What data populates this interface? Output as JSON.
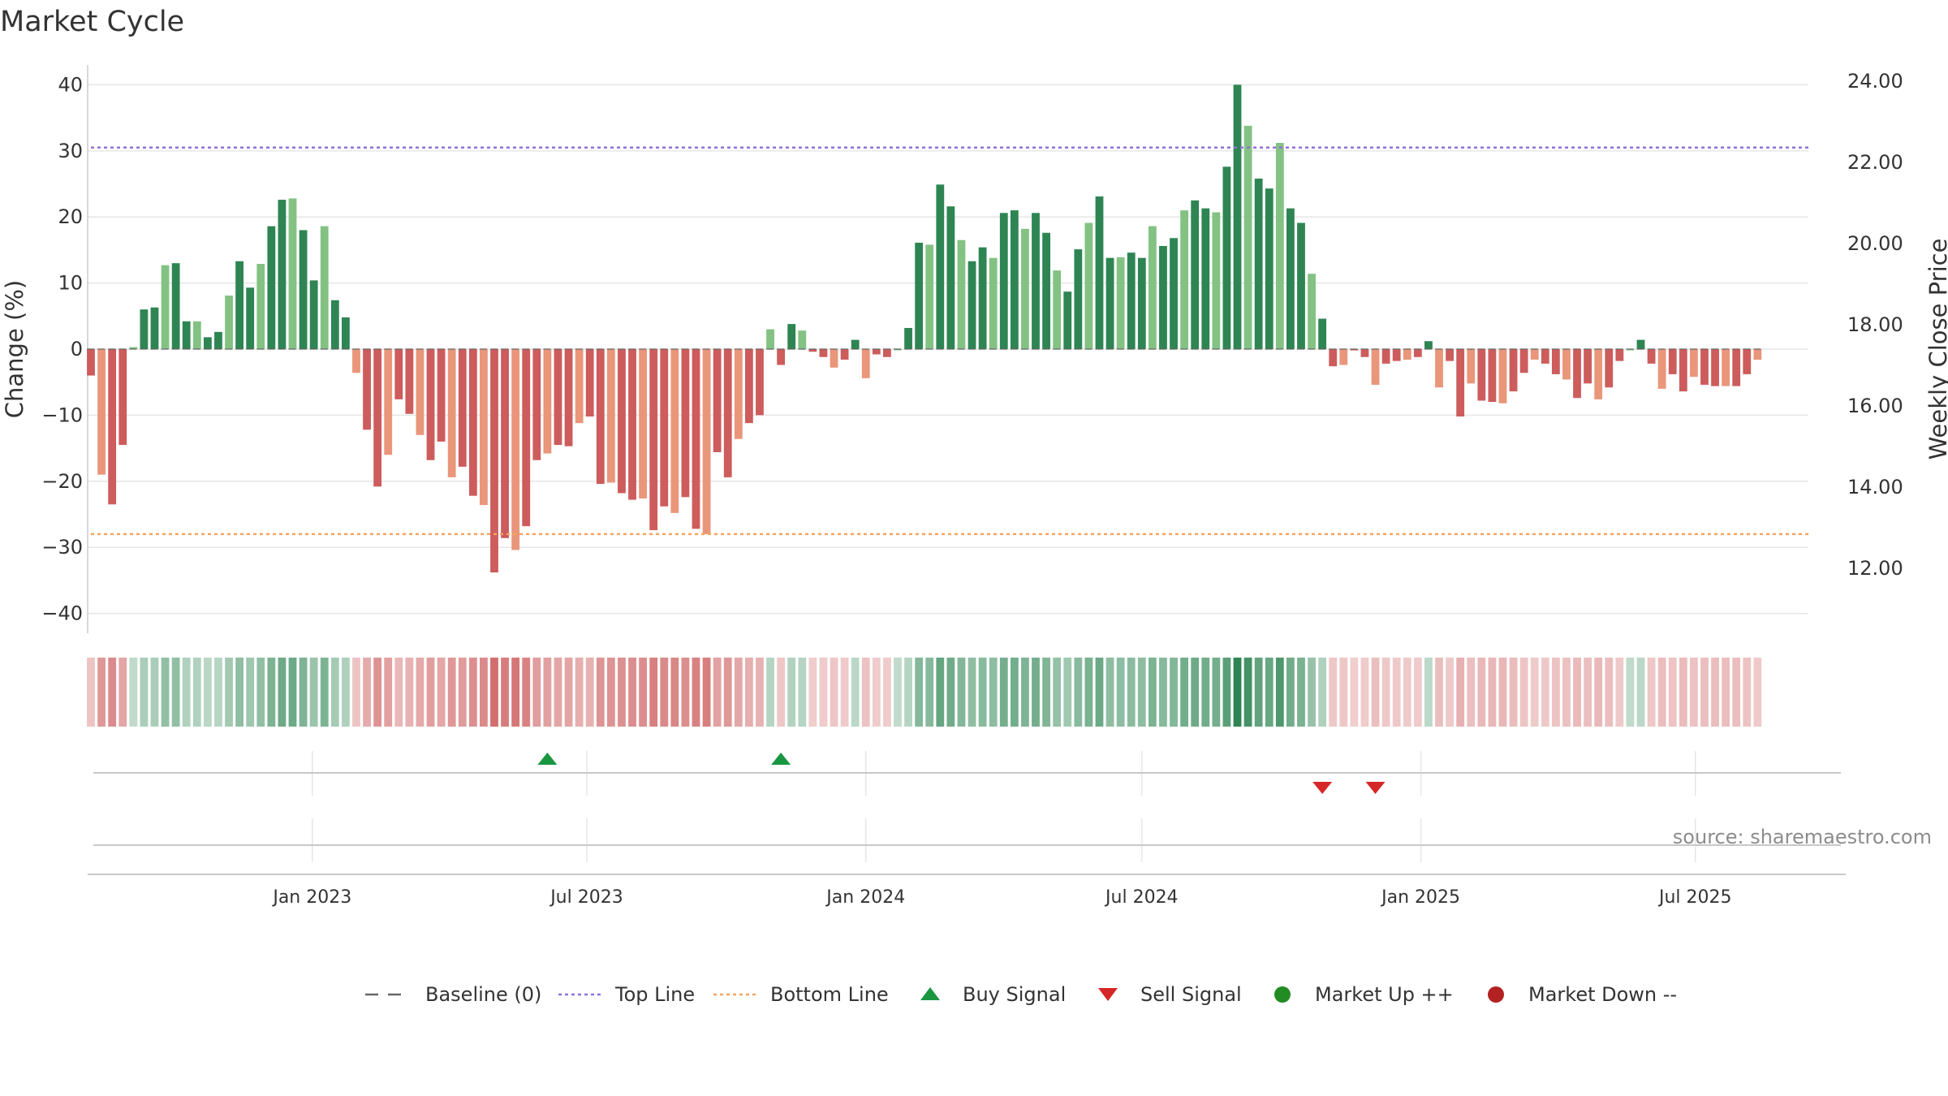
{
  "colors": {
    "up_strong": "#2e8553",
    "up_light": "#83c283",
    "down_strong": "#cd5c5c",
    "down_light": "#e9967a",
    "top_line": "#9370db",
    "bottom_line": "#f4a460",
    "baseline": "#666666",
    "buy": "#1a9641",
    "sell": "#d62728",
    "market_up": "#228b22",
    "market_down": "#b22222",
    "grid": "#e6e6e6"
  },
  "chart_data": {
    "type": "bar",
    "title": "Market Cycle",
    "ylabel": "Change (%)",
    "y2label": "Weekly Close Price",
    "ylim": [
      -43,
      43
    ],
    "yticks": [
      40,
      30,
      20,
      10,
      0,
      -10,
      -20,
      -30,
      -40
    ],
    "ytick_labels": [
      "40",
      "30",
      "20",
      "10",
      "0",
      "−10",
      "−20",
      "−30",
      "−40"
    ],
    "y2ticks": [
      24,
      22,
      20,
      18,
      16,
      14,
      12
    ],
    "y2tick_labels": [
      "24.00",
      "22.00",
      "20.00",
      "18.00",
      "16.00",
      "14.00",
      "12.00"
    ],
    "y2lim": [
      10.4,
      24.4
    ],
    "top_line": 30.5,
    "bottom_line": -28,
    "x_start": "2022-08-08",
    "x_end": "2025-10-06",
    "xticks": [
      "2023-01-01",
      "2023-07-01",
      "2024-01-01",
      "2024-07-01",
      "2025-01-01",
      "2025-07-01"
    ],
    "xtick_labels": [
      "Jan 2023",
      "Jul 2023",
      "Jan 2024",
      "Jul 2024",
      "Jan 2025",
      "Jul 2025"
    ],
    "series": [
      {
        "start_date": "2022-08-08",
        "frequency": "weekly",
        "values": [
          -4,
          -19,
          -23.5,
          -14.5,
          0.3,
          6,
          6.3,
          12.7,
          13,
          4.2,
          4.2,
          1.8,
          2.6,
          8.1,
          13.3,
          9.3,
          12.9,
          18.6,
          22.6,
          22.8,
          18,
          10.4,
          18.6,
          7.4,
          4.8,
          -3.6,
          -12.2,
          -20.8,
          -16,
          -7.6,
          -9.8,
          -13,
          -16.8,
          -14,
          -19.4,
          -17.8,
          -22.2,
          -23.6,
          -33.8,
          -28.6,
          -30.4,
          -26.8,
          -16.8,
          -15.8,
          -14.5,
          -14.7,
          -11.2,
          -10.2,
          -20.4,
          -20.2,
          -21.8,
          -22.8,
          -22.6,
          -27.4,
          -23.8,
          -24.8,
          -22.4,
          -27.2,
          -28,
          -15.6,
          -19.4,
          -13.6,
          -11.2,
          -10,
          3,
          -2.4,
          3.8,
          2.8,
          -0.4,
          -1.2,
          -2.8,
          -1.6,
          1.4,
          -4.4,
          -0.8,
          -1.2,
          0,
          3.2,
          16.1,
          15.8,
          24.9,
          21.6,
          16.5,
          13.3,
          15.4,
          13.8,
          20.6,
          21,
          18.2,
          20.6,
          17.6,
          11.9,
          8.7,
          15.1,
          19.1,
          23.1,
          13.8,
          13.9,
          14.6,
          13.8,
          18.6,
          15.6,
          16.8,
          21,
          22.5,
          21.3,
          20.7,
          27.6,
          40,
          33.8,
          25.8,
          24.3,
          31.2,
          21.3,
          19.1,
          11.4,
          4.6,
          -2.6,
          -2.4,
          -0.2,
          -1.2,
          -5.4,
          -2.2,
          -1.8,
          -1.6,
          -1.2,
          1.2,
          -5.8,
          -1.8,
          -10.2,
          -5.2,
          -7.8,
          -8,
          -8.2,
          -6.4,
          -3.6,
          -1.6,
          -2.2,
          -3.8,
          -4.6,
          -7.4,
          -5.2,
          -7.6,
          -5.8,
          -1.8,
          0,
          1.4,
          -2.2,
          -6,
          -3.8,
          -6.4,
          -4.2,
          -5.4,
          -5.6,
          -5.6,
          -5.6,
          -3.8,
          -1.6
        ],
        "strength_ratio": 0.55
      }
    ],
    "signals": {
      "buy": [
        "2023-06-05",
        "2023-11-06"
      ],
      "sell": [
        "2024-10-28",
        "2024-12-02"
      ]
    },
    "legend_position": "bottom-center",
    "legend": [
      {
        "key": "baseline",
        "label": "Baseline (0)"
      },
      {
        "key": "top",
        "label": "Top Line"
      },
      {
        "key": "bottom",
        "label": "Bottom Line"
      },
      {
        "key": "buy",
        "label": "Buy Signal"
      },
      {
        "key": "sell",
        "label": "Sell Signal"
      },
      {
        "key": "up",
        "label": "Market Up ++"
      },
      {
        "key": "down",
        "label": "Market Down --"
      }
    ],
    "source": "source: sharemaestro.com",
    "grid": true
  }
}
